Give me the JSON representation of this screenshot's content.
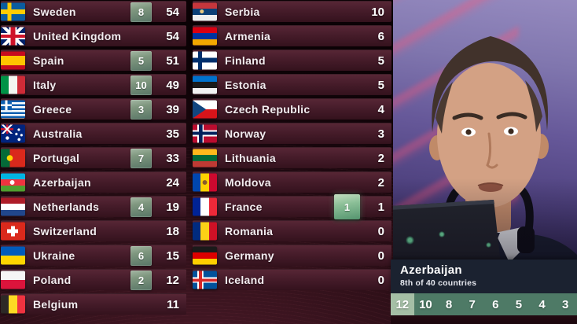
{
  "scoreboard": {
    "columns": [
      {
        "rows": [
          {
            "country": "Sweden",
            "flag": "se",
            "points_given": "8",
            "score": "54"
          },
          {
            "country": "United Kingdom",
            "flag": "gb",
            "points_given": "",
            "score": "54"
          },
          {
            "country": "Spain",
            "flag": "es",
            "points_given": "5",
            "score": "51"
          },
          {
            "country": "Italy",
            "flag": "it",
            "points_given": "10",
            "score": "49"
          },
          {
            "country": "Greece",
            "flag": "gr",
            "points_given": "3",
            "score": "39"
          },
          {
            "country": "Australia",
            "flag": "au",
            "points_given": "",
            "score": "35"
          },
          {
            "country": "Portugal",
            "flag": "pt",
            "points_given": "7",
            "score": "33"
          },
          {
            "country": "Azerbaijan",
            "flag": "az",
            "points_given": "",
            "score": "24"
          },
          {
            "country": "Netherlands",
            "flag": "nl",
            "points_given": "4",
            "score": "19"
          },
          {
            "country": "Switzerland",
            "flag": "ch",
            "points_given": "",
            "score": "18"
          },
          {
            "country": "Ukraine",
            "flag": "ua",
            "points_given": "6",
            "score": "15"
          },
          {
            "country": "Poland",
            "flag": "pl",
            "points_given": "2",
            "score": "12"
          },
          {
            "country": "Belgium",
            "flag": "be",
            "points_given": "",
            "score": "11"
          }
        ]
      },
      {
        "rows": [
          {
            "country": "Serbia",
            "flag": "rs",
            "points_given": "",
            "score": "10"
          },
          {
            "country": "Armenia",
            "flag": "am",
            "points_given": "",
            "score": "6"
          },
          {
            "country": "Finland",
            "flag": "fi",
            "points_given": "",
            "score": "5"
          },
          {
            "country": "Estonia",
            "flag": "ee",
            "points_given": "",
            "score": "5"
          },
          {
            "country": "Czech Republic",
            "flag": "cz",
            "points_given": "",
            "score": "4"
          },
          {
            "country": "Norway",
            "flag": "no",
            "points_given": "",
            "score": "3"
          },
          {
            "country": "Lithuania",
            "flag": "lt",
            "points_given": "",
            "score": "2"
          },
          {
            "country": "Moldova",
            "flag": "md",
            "points_given": "",
            "score": "2"
          },
          {
            "country": "France",
            "flag": "fr",
            "points_given": "1",
            "highlight": true,
            "score": "1"
          },
          {
            "country": "Romania",
            "flag": "ro",
            "points_given": "",
            "score": "0"
          },
          {
            "country": "Germany",
            "flag": "de",
            "points_given": "",
            "score": "0"
          },
          {
            "country": "Iceland",
            "flag": "is",
            "points_given": "",
            "score": "0"
          }
        ]
      }
    ]
  },
  "info_panel": {
    "country": "Azerbaijan",
    "subtitle": "8th of 40 countries",
    "points_strip": [
      {
        "value": "12",
        "highlight": true
      },
      {
        "value": "10"
      },
      {
        "value": "8"
      },
      {
        "value": "7"
      },
      {
        "value": "6"
      },
      {
        "value": "5"
      },
      {
        "value": "4"
      },
      {
        "value": "3"
      }
    ]
  },
  "colors": {
    "row_maroon": "#461c2a",
    "badge_green": "#7f977f",
    "badge_highlight": "#8bbf97",
    "strip_green": "#4e7a66",
    "strip_highlight": "#a5bfa6",
    "panel_navy": "#1b2230",
    "stage_purple": "#665899",
    "streak_pink": "#ff5578"
  }
}
